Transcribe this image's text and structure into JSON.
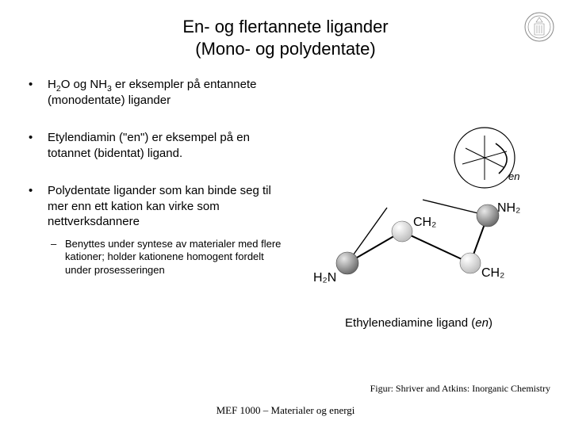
{
  "title_line1": "En- og flertannete ligander",
  "title_line2": "(Mono- og polydentate)",
  "bullets": [
    {
      "html": "H<sub>2</sub>O og NH<sub>3</sub> er eksempler på entannete (monodentate) ligander"
    },
    {
      "html": "Etylendiamin (\"en\") er eksempel på en totannet (bidentat) ligand."
    },
    {
      "html": "Polydentate ligander som kan binde seg til mer enn ett kation kan virke som nettverksdannere",
      "sub": "Benyttes under syntese av materialer med flere kationer; holder kationene homogent fordelt under prosesseringen"
    }
  ],
  "figure": {
    "en_label": "en",
    "labels": {
      "h2n": "H₂N",
      "nh2": "NH₂",
      "ch2a": "CH₂",
      "ch2b": "CH₂"
    },
    "caption_prefix": "Ethylenediamine ligand (",
    "caption_en": "en",
    "caption_suffix": ")",
    "colors": {
      "atom_light": "#d9d9d9",
      "atom_dark": "#808080",
      "atom_darker": "#606060",
      "bond": "#000000",
      "circle_stroke": "#000000"
    }
  },
  "credit": "Figur: Shriver and Atkins: Inorganic Chemistry",
  "footer": "MEF 1000 – Materialer og energi"
}
